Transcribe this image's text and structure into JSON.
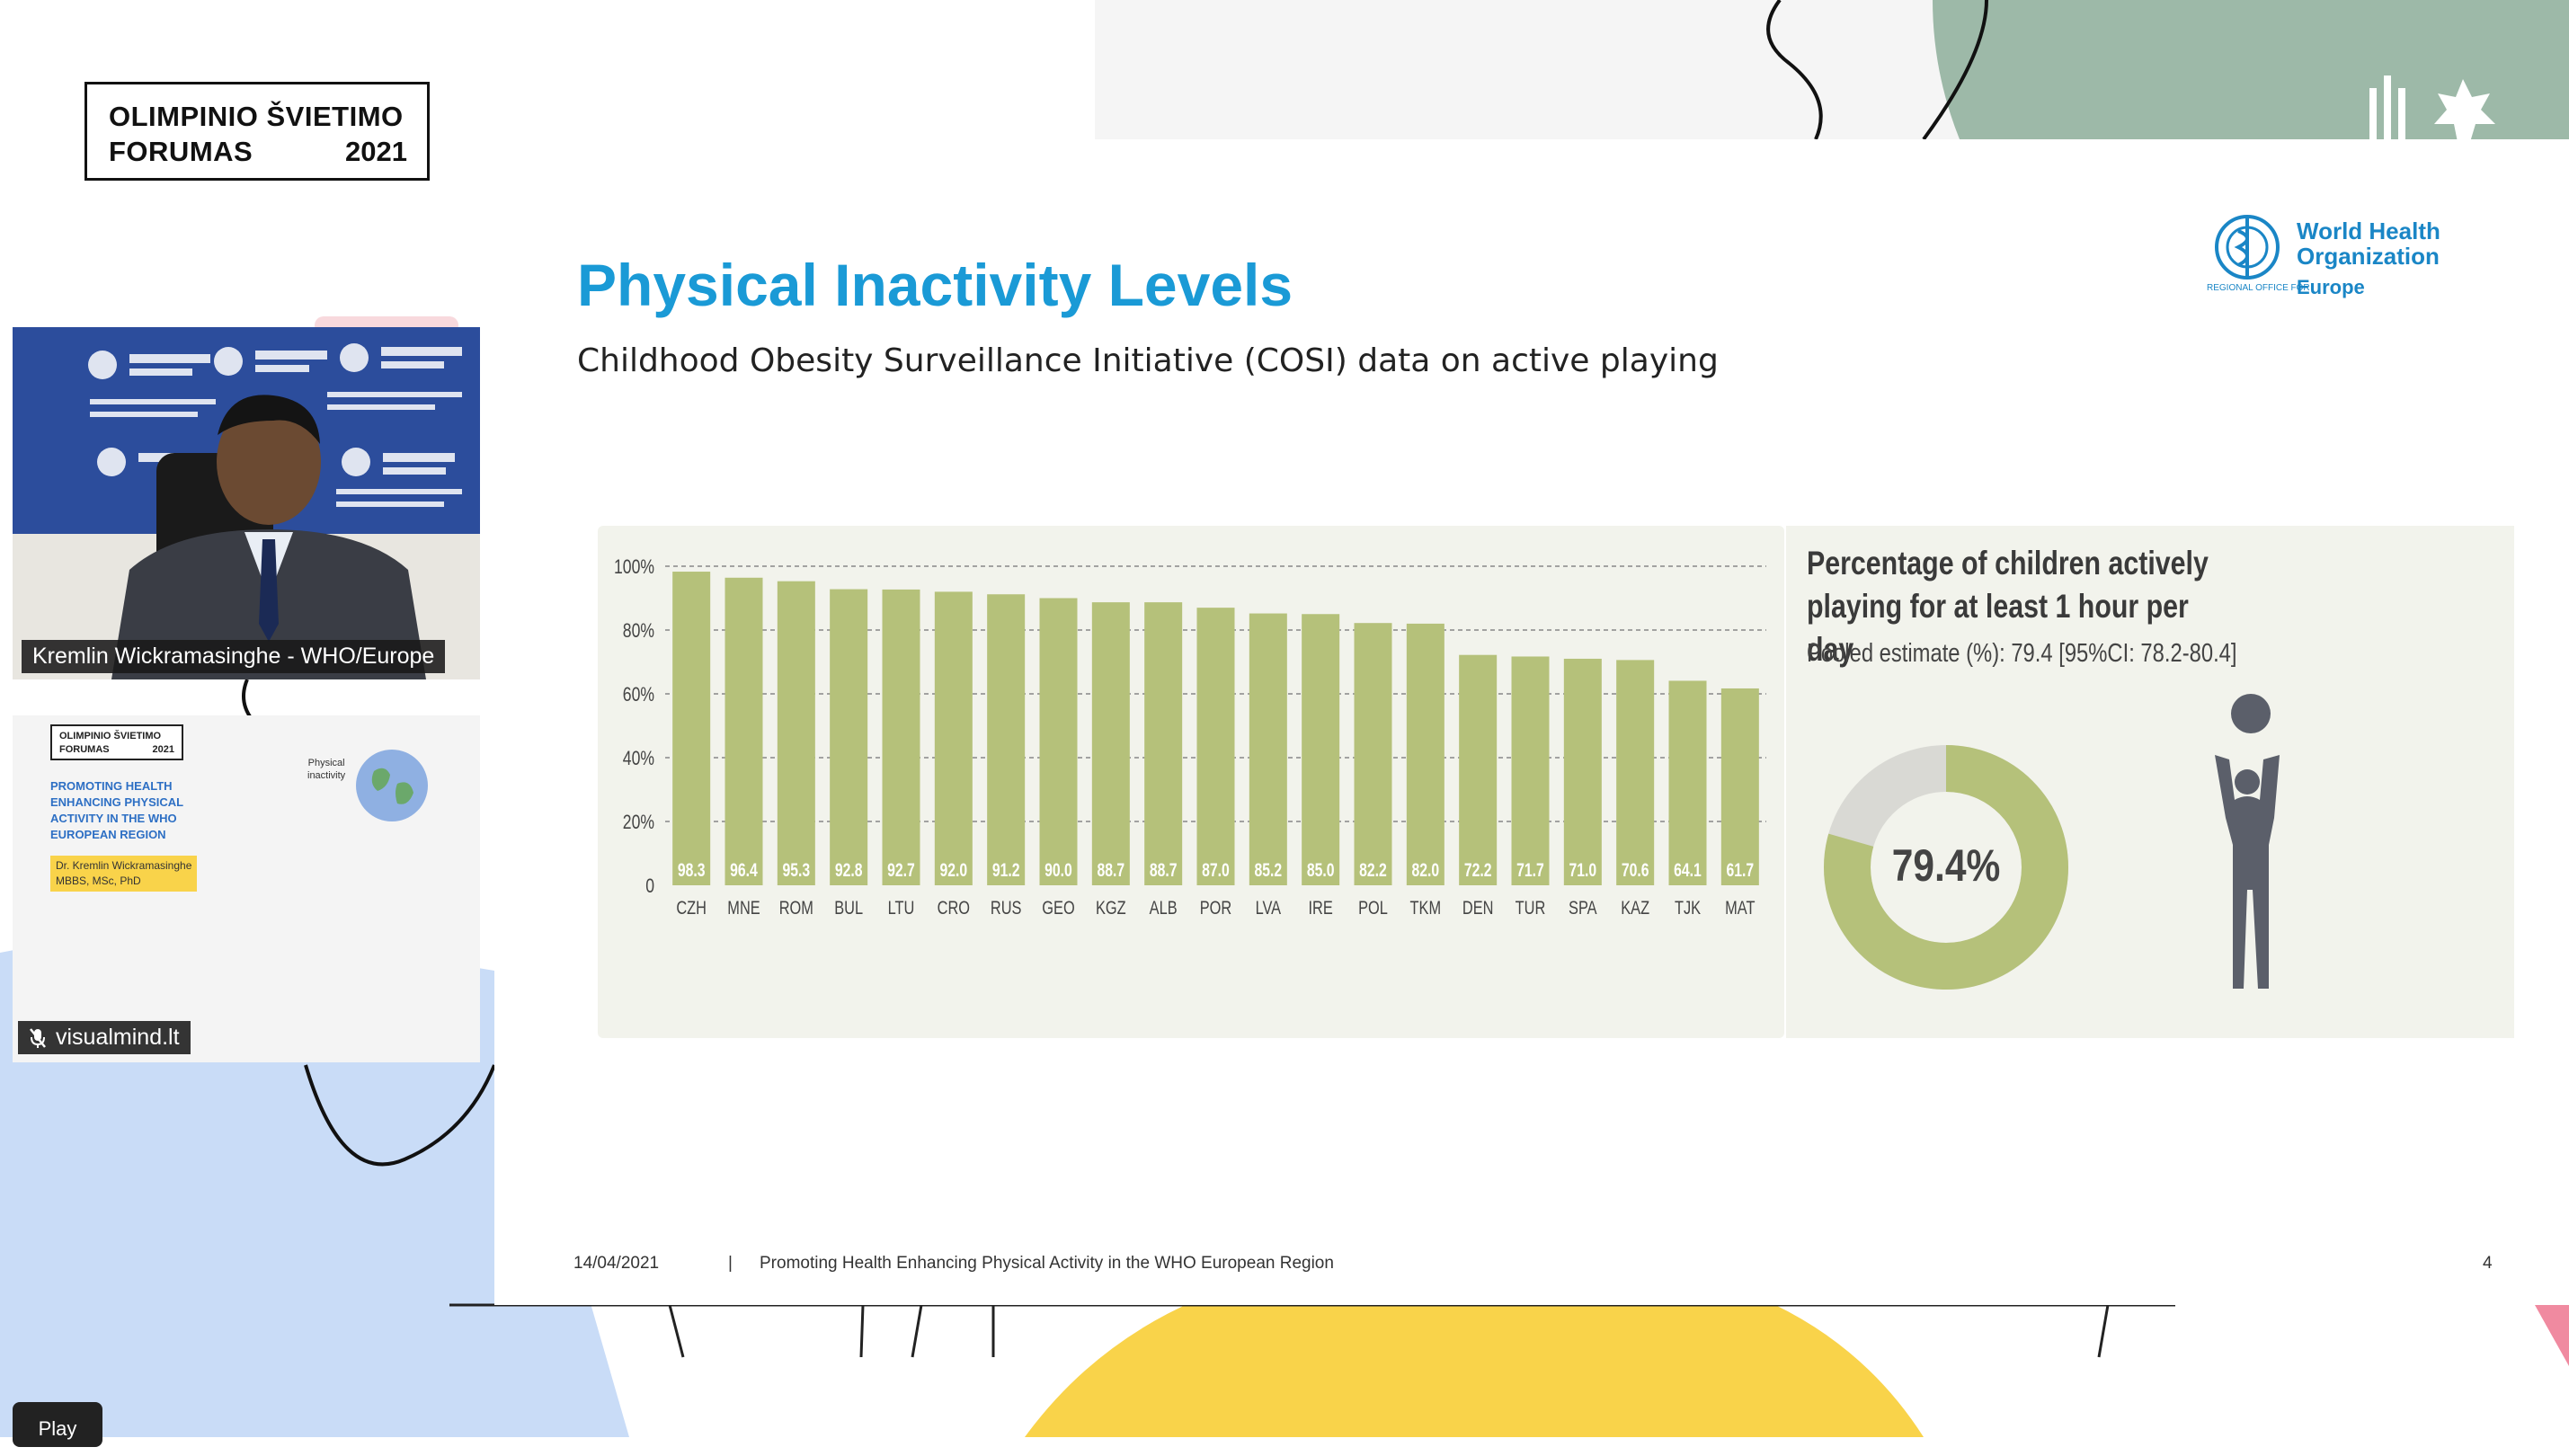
{
  "event_logo": {
    "line1": "OLIMPINIO ŠVIETIMO",
    "line2": "FORUMAS",
    "year": "2021"
  },
  "slide": {
    "title": "Physical Inactivity Levels",
    "subtitle": "Childhood Obesity Surveillance Initiative (COSI) data on active playing",
    "who_logo": {
      "line1": "World Health",
      "line2": "Organization",
      "small": "REGIONAL OFFICE FOR",
      "region": "Europe"
    },
    "side": {
      "title": "Percentage of children actively playing for at least 1 hour per day",
      "pooled": "Pooled estimate (%): 79.4 [95%CI: 78.2-80.4]",
      "donut_label": "79.4%",
      "donut_value": 79.4
    },
    "footer": {
      "date": "14/04/2021",
      "separator": "|",
      "text": "Promoting Health Enhancing Physical Activity in the WHO European Region",
      "page": "4"
    }
  },
  "chart_data": {
    "type": "bar",
    "categories": [
      "CZH",
      "MNE",
      "ROM",
      "BUL",
      "LTU",
      "CRO",
      "RUS",
      "GEO",
      "KGZ",
      "ALB",
      "POR",
      "LVA",
      "IRE",
      "POL",
      "TKM",
      "DEN",
      "TUR",
      "SPA",
      "KAZ",
      "TJK",
      "MAT"
    ],
    "values": [
      98.3,
      96.4,
      95.3,
      92.8,
      92.7,
      92.0,
      91.2,
      90.0,
      88.7,
      88.7,
      87.0,
      85.2,
      85.0,
      82.2,
      82.0,
      72.2,
      71.7,
      71.0,
      70.6,
      64.1,
      61.7
    ],
    "value_labels": [
      "98.3",
      "96.4",
      "95.3",
      "92.8",
      "92.7",
      "92.0",
      "91.2",
      "90.0",
      "88.7",
      "88.7",
      "87.0",
      "85.2",
      "85.0",
      "82.2",
      "82.0",
      "72.2",
      "71.7",
      "71.0",
      "70.6",
      "64.1",
      "61.7"
    ],
    "y_ticks": [
      "100%",
      "80%",
      "60%",
      "40%",
      "20%",
      "0"
    ],
    "ylim": [
      0,
      100
    ],
    "bar_color": "#b5c17a",
    "grid": true
  },
  "video_tiles": [
    {
      "name": "Kremlin Wickramasinghe - WHO/Europe"
    },
    {
      "name": "visualmind.lt",
      "thumb": {
        "logo_line1": "OLIMPINIO ŠVIETIMO",
        "logo_line2": "FORUMAS",
        "logo_year": "2021",
        "title": "PROMOTING HEALTH ENHANCING PHYSICAL ACTIVITY IN THE WHO EUROPEAN REGION",
        "author": "Dr. Kremlin Wickramasinghe",
        "credentials": "MBBS, MSc, PhD",
        "globe_label_1": "Physical",
        "globe_label_2": "inactivity"
      }
    }
  ],
  "play_button": {
    "label": "Play"
  },
  "colors": {
    "title_blue": "#1a9ad6",
    "bar_green": "#b5c17a",
    "sage": "#9db9a8",
    "yellow": "#f9d34a",
    "sky": "#c9dcf7"
  }
}
